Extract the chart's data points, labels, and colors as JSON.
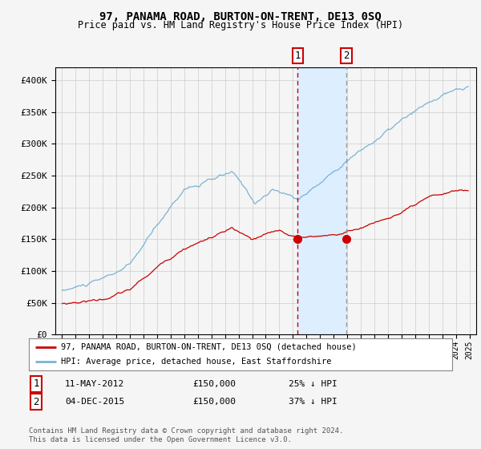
{
  "title": "97, PANAMA ROAD, BURTON-ON-TRENT, DE13 0SQ",
  "subtitle": "Price paid vs. HM Land Registry's House Price Index (HPI)",
  "legend_line1": "97, PANAMA ROAD, BURTON-ON-TRENT, DE13 0SQ (detached house)",
  "legend_line2": "HPI: Average price, detached house, East Staffordshire",
  "transaction1_date": "11-MAY-2012",
  "transaction1_price": "£150,000",
  "transaction1_hpi": "25% ↓ HPI",
  "transaction2_date": "04-DEC-2015",
  "transaction2_price": "£150,000",
  "transaction2_hpi": "37% ↓ HPI",
  "footnote1": "Contains HM Land Registry data © Crown copyright and database right 2024.",
  "footnote2": "This data is licensed under the Open Government Licence v3.0.",
  "hpi_color": "#7ab3d4",
  "price_color": "#cc0000",
  "vline1_color": "#cc0000",
  "vline2_color": "#999999",
  "shade_color": "#ddeeff",
  "dot_color": "#cc0000",
  "bg_color": "#f5f5f5",
  "chart_bg": "#f5f5f5",
  "grid_color": "#cccccc",
  "ylim": [
    0,
    420000
  ],
  "yticks": [
    0,
    50000,
    100000,
    150000,
    200000,
    250000,
    300000,
    350000,
    400000
  ],
  "xlim_left": 1994.5,
  "xlim_right": 2025.5,
  "transaction1_x": 2012.36,
  "transaction2_x": 2015.92,
  "transaction1_y": 150000,
  "transaction2_y": 150000
}
